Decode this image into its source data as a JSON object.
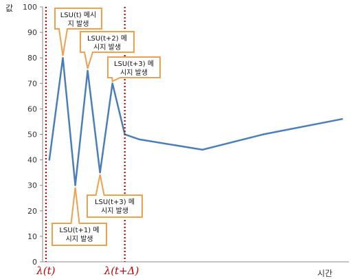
{
  "chart_data": {
    "type": "line",
    "title": "",
    "xlabel": "시간",
    "ylabel": "값",
    "ylim": [
      0,
      100
    ],
    "yticks": [
      0,
      10,
      20,
      30,
      40,
      50,
      60,
      70,
      80,
      90,
      100
    ],
    "grid": false,
    "line_color": "#4a7ebb",
    "marker_color": "#c00000",
    "callout_color": "#f0a04b",
    "series": [
      {
        "points": [
          {
            "x": 0,
            "y": 40
          },
          {
            "x": 0.6,
            "y": 80
          },
          {
            "x": 1.15,
            "y": 30
          },
          {
            "x": 1.7,
            "y": 75
          },
          {
            "x": 2.25,
            "y": 35
          },
          {
            "x": 2.8,
            "y": 70
          },
          {
            "x": 3.35,
            "y": 50
          },
          {
            "x": 4.0,
            "y": 48
          },
          {
            "x": 6.8,
            "y": 44
          },
          {
            "x": 9.5,
            "y": 50
          },
          {
            "x": 13.0,
            "y": 56
          }
        ]
      }
    ],
    "xlim": [
      -0.3,
      13.3
    ],
    "markers": [
      {
        "x": -0.15,
        "label": "λ(t)"
      },
      {
        "x": 3.35,
        "label": "λ(t+Δ)"
      }
    ],
    "annotations": [
      {
        "lines": [
          "LSU(t) 메시",
          "지 발생"
        ],
        "point": 1
      },
      {
        "lines": [
          "LSU(t+2) 메",
          "시지 발생"
        ],
        "point": 3
      },
      {
        "lines": [
          "LSU(t+3) 메",
          "시지 발생"
        ],
        "point": 5
      },
      {
        "lines": [
          "LSU(t+3) 메",
          "시지 발생"
        ],
        "point": 4
      },
      {
        "lines": [
          "LSU(t+1) 메",
          "시지 발생"
        ],
        "point": 2
      }
    ]
  }
}
